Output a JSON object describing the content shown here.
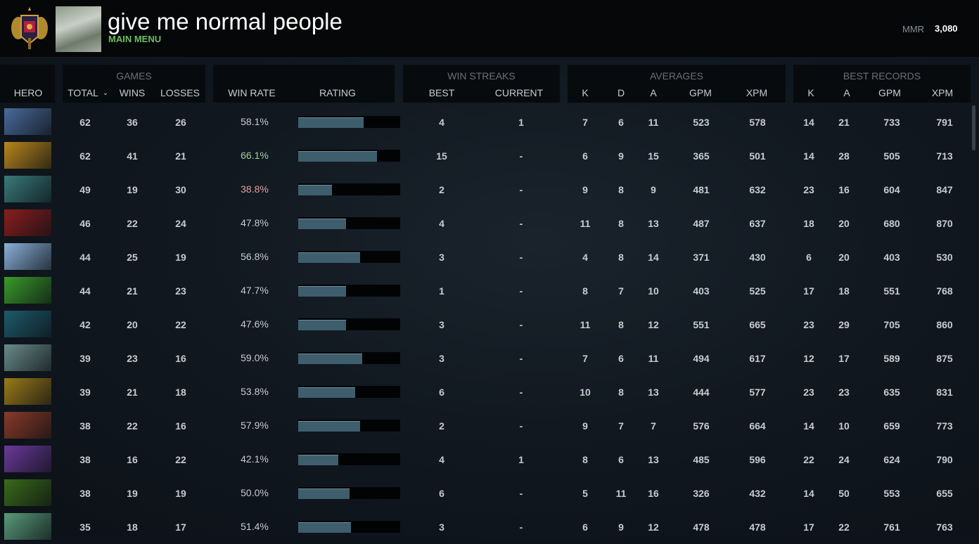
{
  "header": {
    "title": "give me normal people",
    "menu": "MAIN MENU",
    "mmr_label": "MMR",
    "mmr_value": "3,080"
  },
  "groups": {
    "games": "GAMES",
    "streaks": "WIN STREAKS",
    "averages": "AVERAGES",
    "best": "BEST RECORDS"
  },
  "columns": {
    "hero": "HERO",
    "total": "TOTAL",
    "wins": "WINS",
    "losses": "LOSSES",
    "winrate": "WIN RATE",
    "rating": "RATING",
    "best": "BEST",
    "current": "CURRENT",
    "k": "K",
    "d": "D",
    "a": "A",
    "gpm": "GPM",
    "xpm": "XPM",
    "bk": "K",
    "ba": "A",
    "bgpm": "GPM",
    "bxpm": "XPM"
  },
  "sort_icon": "chevron-down-icon",
  "colors": {
    "win_high": "#9fd29a",
    "win_low": "#e0a0a0",
    "bar": "#3e5e6e",
    "menu": "#6cbf5e"
  },
  "rows": [
    {
      "hero_color": "#4a6a9a",
      "total": "62",
      "wins": "36",
      "losses": "26",
      "winrate": "58.1%",
      "rating": 64,
      "best": "4",
      "current": "1",
      "k": "7",
      "d": "6",
      "a": "11",
      "gpm": "523",
      "xpm": "578",
      "bk": "14",
      "ba": "21",
      "bgpm": "733",
      "bxpm": "791"
    },
    {
      "hero_color": "#b8861c",
      "total": "62",
      "wins": "41",
      "losses": "21",
      "winrate": "66.1%",
      "rating": 77,
      "wr_state": "high",
      "best": "15",
      "current": "-",
      "k": "6",
      "d": "9",
      "a": "15",
      "gpm": "365",
      "xpm": "501",
      "bk": "14",
      "ba": "28",
      "bgpm": "505",
      "bxpm": "713"
    },
    {
      "hero_color": "#3a7a7a",
      "total": "49",
      "wins": "19",
      "losses": "30",
      "winrate": "38.8%",
      "rating": 33,
      "wr_state": "low",
      "best": "2",
      "current": "-",
      "k": "9",
      "d": "8",
      "a": "9",
      "gpm": "481",
      "xpm": "632",
      "bk": "23",
      "ba": "16",
      "bgpm": "604",
      "bxpm": "847"
    },
    {
      "hero_color": "#8a1e1e",
      "total": "46",
      "wins": "22",
      "losses": "24",
      "winrate": "47.8%",
      "rating": 47,
      "best": "4",
      "current": "-",
      "k": "11",
      "d": "8",
      "a": "13",
      "gpm": "487",
      "xpm": "637",
      "bk": "18",
      "ba": "20",
      "bgpm": "680",
      "bxpm": "870"
    },
    {
      "hero_color": "#8ab0d8",
      "total": "44",
      "wins": "25",
      "losses": "19",
      "winrate": "56.8%",
      "rating": 61,
      "best": "3",
      "current": "-",
      "k": "4",
      "d": "8",
      "a": "14",
      "gpm": "371",
      "xpm": "430",
      "bk": "6",
      "ba": "20",
      "bgpm": "403",
      "bxpm": "530"
    },
    {
      "hero_color": "#3a9a2a",
      "total": "44",
      "wins": "21",
      "losses": "23",
      "winrate": "47.7%",
      "rating": 47,
      "best": "1",
      "current": "-",
      "k": "8",
      "d": "7",
      "a": "10",
      "gpm": "403",
      "xpm": "525",
      "bk": "17",
      "ba": "18",
      "bgpm": "551",
      "bxpm": "768"
    },
    {
      "hero_color": "#1e5a6a",
      "total": "42",
      "wins": "20",
      "losses": "22",
      "winrate": "47.6%",
      "rating": 47,
      "best": "3",
      "current": "-",
      "k": "11",
      "d": "8",
      "a": "12",
      "gpm": "551",
      "xpm": "665",
      "bk": "23",
      "ba": "29",
      "bgpm": "705",
      "bxpm": "860"
    },
    {
      "hero_color": "#6a8a8a",
      "total": "39",
      "wins": "23",
      "losses": "16",
      "winrate": "59.0%",
      "rating": 63,
      "best": "3",
      "current": "-",
      "k": "7",
      "d": "6",
      "a": "11",
      "gpm": "494",
      "xpm": "617",
      "bk": "12",
      "ba": "17",
      "bgpm": "589",
      "bxpm": "875"
    },
    {
      "hero_color": "#9a7a1a",
      "total": "39",
      "wins": "21",
      "losses": "18",
      "winrate": "53.8%",
      "rating": 56,
      "best": "6",
      "current": "-",
      "k": "10",
      "d": "8",
      "a": "13",
      "gpm": "444",
      "xpm": "577",
      "bk": "23",
      "ba": "23",
      "bgpm": "635",
      "bxpm": "831"
    },
    {
      "hero_color": "#8a3a2a",
      "total": "38",
      "wins": "22",
      "losses": "16",
      "winrate": "57.9%",
      "rating": 61,
      "best": "2",
      "current": "-",
      "k": "9",
      "d": "7",
      "a": "7",
      "gpm": "576",
      "xpm": "664",
      "bk": "14",
      "ba": "10",
      "bgpm": "659",
      "bxpm": "773"
    },
    {
      "hero_color": "#6a3a9a",
      "total": "38",
      "wins": "16",
      "losses": "22",
      "winrate": "42.1%",
      "rating": 39,
      "best": "4",
      "current": "1",
      "k": "8",
      "d": "6",
      "a": "13",
      "gpm": "485",
      "xpm": "596",
      "bk": "22",
      "ba": "24",
      "bgpm": "624",
      "bxpm": "790"
    },
    {
      "hero_color": "#3a6a1a",
      "total": "38",
      "wins": "19",
      "losses": "19",
      "winrate": "50.0%",
      "rating": 50,
      "best": "6",
      "current": "-",
      "k": "5",
      "d": "11",
      "a": "16",
      "gpm": "326",
      "xpm": "432",
      "bk": "14",
      "ba": "50",
      "bgpm": "553",
      "bxpm": "655"
    },
    {
      "hero_color": "#5a9a7a",
      "total": "35",
      "wins": "18",
      "losses": "17",
      "winrate": "51.4%",
      "rating": 52,
      "best": "3",
      "current": "-",
      "k": "6",
      "d": "9",
      "a": "12",
      "gpm": "478",
      "xpm": "478",
      "bk": "17",
      "ba": "22",
      "bgpm": "761",
      "bxpm": "763"
    }
  ]
}
